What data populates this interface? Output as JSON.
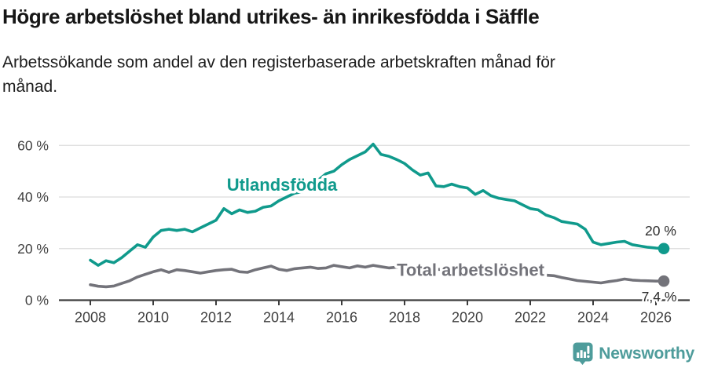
{
  "header": {
    "title": "Högre arbetslöshet bland utrikes- än inrikesfödda i Säffle",
    "subtitle_lines": [
      "Arbetssökande som andel av den registerbaserade arbetskraften månad för",
      "månad."
    ]
  },
  "footer": {
    "brand": "Newsworthy",
    "brand_color": "#4e9c9b"
  },
  "colors": {
    "accent_teal": "#109a8c",
    "neutral_gray": "#73737a",
    "axis": "#3c3c3c",
    "gridline": "#dcdcdc",
    "tick_text": "#3f3f3f",
    "annotation_text": "#2d2d2d"
  },
  "chart_data": {
    "type": "line",
    "title": "Högre arbetslöshet bland utrikes- än inrikesfödda i Säffle",
    "subtitle": "Arbetssökande som andel av den registerbaserade arbetskraften månad för månad.",
    "grid": "horizontal",
    "legend_position": "inline-labels",
    "ylim": [
      0,
      62
    ],
    "y_ticks": [
      {
        "value": 0,
        "label": "0 %"
      },
      {
        "value": 20,
        "label": "20 %"
      },
      {
        "value": 40,
        "label": "40 %"
      },
      {
        "value": 60,
        "label": "60 %"
      }
    ],
    "x_ticks": [
      {
        "value": 2008,
        "label": "2008"
      },
      {
        "value": 2010,
        "label": "2010"
      },
      {
        "value": 2012,
        "label": "2012"
      },
      {
        "value": 2014,
        "label": "2014"
      },
      {
        "value": 2016,
        "label": "2016"
      },
      {
        "value": 2018,
        "label": "2018"
      },
      {
        "value": 2020,
        "label": "2020"
      },
      {
        "value": 2022,
        "label": "2022"
      },
      {
        "value": 2024,
        "label": "2024"
      },
      {
        "value": 2026,
        "label": "2026"
      }
    ],
    "x_start": 2008,
    "x_step": 0.25,
    "series": [
      {
        "name": "Utlandsfödda",
        "color": "#109a8c",
        "end_label": "20 %",
        "label_anchor": {
          "x": 2014.1,
          "y": 42.5
        },
        "values": [
          15.5,
          13.5,
          15.3,
          14.5,
          16.5,
          19.0,
          21.5,
          20.5,
          24.5,
          27.0,
          27.5,
          27.0,
          27.5,
          26.5,
          28.0,
          29.5,
          31.0,
          35.5,
          33.5,
          35.0,
          34.0,
          34.5,
          36.0,
          36.5,
          38.5,
          40.0,
          41.5,
          42.0,
          44.5,
          46.5,
          49.0,
          50.0,
          52.5,
          54.5,
          56.0,
          57.5,
          60.5,
          56.5,
          55.8,
          54.5,
          53.0,
          50.5,
          48.5,
          49.3,
          44.3,
          44.0,
          45.0,
          44.0,
          43.5,
          41.0,
          42.5,
          40.5,
          39.5,
          39.0,
          38.5,
          37.0,
          35.5,
          35.0,
          33.0,
          32.0,
          30.5,
          30.0,
          29.5,
          27.5,
          22.5,
          21.5,
          22.0,
          22.5,
          22.8,
          21.5,
          21.0,
          20.5,
          20.2,
          20.0
        ]
      },
      {
        "name": "Total arbetslöshet",
        "color": "#73737a",
        "end_label": "7,4 %",
        "label_anchor": {
          "x": 2020.1,
          "y": 9.5
        },
        "values": [
          6.0,
          5.4,
          5.2,
          5.5,
          6.5,
          7.5,
          9.0,
          10.0,
          11.0,
          11.8,
          10.8,
          11.8,
          11.5,
          11.0,
          10.5,
          11.0,
          11.5,
          11.8,
          12.0,
          11.0,
          10.8,
          11.8,
          12.5,
          13.2,
          12.0,
          11.5,
          12.2,
          12.5,
          12.8,
          12.3,
          12.5,
          13.5,
          13.0,
          12.5,
          13.3,
          12.8,
          13.5,
          13.0,
          12.5,
          12.8,
          12.8,
          13.0,
          12.5,
          12.3,
          12.0,
          11.8,
          11.5,
          11.3,
          11.5,
          11.2,
          11.0,
          10.8,
          10.8,
          10.5,
          10.3,
          10.0,
          10.0,
          9.8,
          9.7,
          9.5,
          8.8,
          8.2,
          7.6,
          7.3,
          7.0,
          6.7,
          7.2,
          7.6,
          8.2,
          7.8,
          7.6,
          7.5,
          7.4,
          7.4
        ]
      }
    ]
  }
}
